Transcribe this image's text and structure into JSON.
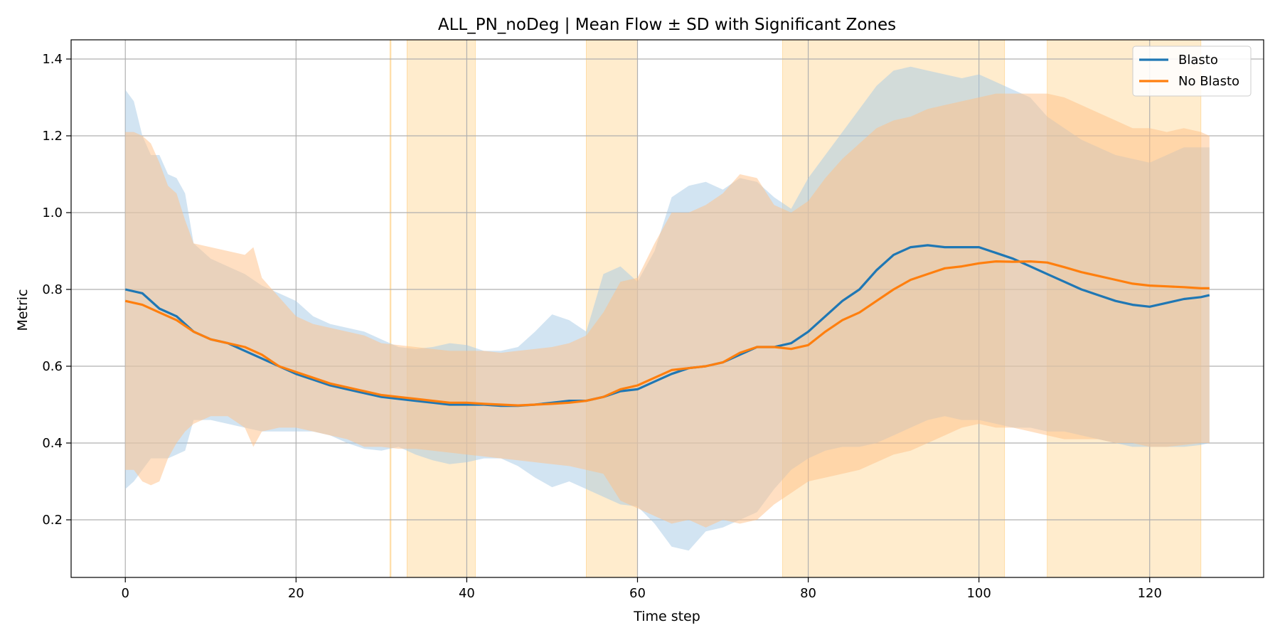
{
  "chart_data": {
    "type": "line",
    "title": "ALL_PN_noDeg | Mean Flow ± SD with Significant Zones",
    "xlabel": "Time step",
    "ylabel": "Metric",
    "xlim": [
      -6.35,
      133.35
    ],
    "ylim": [
      0.05,
      1.45
    ],
    "xticks": [
      0,
      20,
      40,
      60,
      80,
      100,
      120
    ],
    "yticks": [
      0.2,
      0.4,
      0.6,
      0.8,
      1.0,
      1.2,
      1.4
    ],
    "grid": true,
    "legend_position": "top-right",
    "significant_zones": [
      [
        31,
        31
      ],
      [
        33,
        41
      ],
      [
        54,
        60
      ],
      [
        77,
        103
      ],
      [
        108,
        126
      ]
    ],
    "series": [
      {
        "name": "Blasto",
        "color": "#1f77b4",
        "mean": {
          "x": [
            0,
            2,
            4,
            6,
            8,
            10,
            12,
            14,
            16,
            18,
            20,
            22,
            24,
            26,
            28,
            30,
            32,
            34,
            36,
            38,
            40,
            42,
            44,
            46,
            48,
            50,
            52,
            54,
            56,
            58,
            60,
            62,
            64,
            66,
            68,
            70,
            72,
            74,
            76,
            78,
            80,
            82,
            84,
            86,
            88,
            90,
            92,
            94,
            96,
            98,
            100,
            102,
            104,
            106,
            108,
            110,
            112,
            114,
            116,
            118,
            120,
            122,
            124,
            126,
            127
          ],
          "y": [
            0.8,
            0.79,
            0.75,
            0.73,
            0.69,
            0.67,
            0.66,
            0.64,
            0.62,
            0.6,
            0.58,
            0.565,
            0.55,
            0.54,
            0.53,
            0.52,
            0.515,
            0.51,
            0.505,
            0.5,
            0.5,
            0.5,
            0.497,
            0.497,
            0.5,
            0.505,
            0.51,
            0.51,
            0.52,
            0.535,
            0.54,
            0.56,
            0.58,
            0.595,
            0.6,
            0.61,
            0.63,
            0.65,
            0.65,
            0.66,
            0.69,
            0.73,
            0.77,
            0.8,
            0.85,
            0.89,
            0.91,
            0.915,
            0.91,
            0.91,
            0.91,
            0.895,
            0.88,
            0.86,
            0.84,
            0.82,
            0.8,
            0.785,
            0.77,
            0.76,
            0.755,
            0.765,
            0.775,
            0.78,
            0.785
          ]
        },
        "upper": {
          "x": [
            0,
            1,
            2,
            3,
            4,
            5,
            6,
            7,
            8,
            10,
            12,
            14,
            16,
            18,
            20,
            22,
            24,
            26,
            28,
            30,
            32,
            34,
            36,
            38,
            40,
            42,
            44,
            46,
            48,
            50,
            52,
            54,
            56,
            58,
            60,
            62,
            64,
            66,
            68,
            70,
            72,
            74,
            76,
            78,
            80,
            82,
            84,
            86,
            88,
            90,
            92,
            94,
            96,
            98,
            100,
            102,
            104,
            106,
            108,
            110,
            112,
            114,
            116,
            118,
            120,
            122,
            124,
            126,
            127
          ],
          "y": [
            1.32,
            1.29,
            1.2,
            1.15,
            1.15,
            1.1,
            1.09,
            1.05,
            0.92,
            0.88,
            0.86,
            0.84,
            0.81,
            0.79,
            0.77,
            0.73,
            0.71,
            0.7,
            0.69,
            0.67,
            0.65,
            0.645,
            0.65,
            0.66,
            0.655,
            0.64,
            0.64,
            0.65,
            0.69,
            0.735,
            0.72,
            0.69,
            0.84,
            0.86,
            0.82,
            0.9,
            1.04,
            1.07,
            1.08,
            1.06,
            1.09,
            1.08,
            1.04,
            1.01,
            1.09,
            1.15,
            1.21,
            1.27,
            1.33,
            1.37,
            1.38,
            1.37,
            1.36,
            1.35,
            1.36,
            1.34,
            1.32,
            1.3,
            1.25,
            1.22,
            1.19,
            1.17,
            1.15,
            1.14,
            1.13,
            1.15,
            1.17,
            1.17,
            1.17
          ]
        },
        "lower": {
          "x": [
            0,
            1,
            2,
            3,
            4,
            5,
            6,
            7,
            8,
            10,
            12,
            14,
            16,
            18,
            20,
            22,
            24,
            26,
            28,
            30,
            32,
            34,
            36,
            38,
            40,
            42,
            44,
            46,
            48,
            50,
            52,
            54,
            56,
            58,
            60,
            62,
            64,
            66,
            68,
            70,
            72,
            74,
            76,
            78,
            80,
            82,
            84,
            86,
            88,
            90,
            92,
            94,
            96,
            98,
            100,
            102,
            104,
            106,
            108,
            110,
            112,
            114,
            116,
            118,
            120,
            122,
            124,
            126,
            127
          ],
          "y": [
            0.28,
            0.3,
            0.33,
            0.36,
            0.36,
            0.36,
            0.37,
            0.38,
            0.46,
            0.46,
            0.45,
            0.44,
            0.43,
            0.43,
            0.43,
            0.43,
            0.42,
            0.4,
            0.385,
            0.38,
            0.39,
            0.37,
            0.355,
            0.345,
            0.35,
            0.36,
            0.36,
            0.34,
            0.31,
            0.285,
            0.3,
            0.28,
            0.26,
            0.24,
            0.235,
            0.19,
            0.13,
            0.12,
            0.17,
            0.18,
            0.2,
            0.22,
            0.28,
            0.33,
            0.36,
            0.38,
            0.39,
            0.39,
            0.4,
            0.42,
            0.44,
            0.46,
            0.47,
            0.46,
            0.46,
            0.45,
            0.44,
            0.44,
            0.43,
            0.43,
            0.42,
            0.41,
            0.4,
            0.39,
            0.39,
            0.39,
            0.39,
            0.395,
            0.4
          ]
        }
      },
      {
        "name": "No Blasto",
        "color": "#ff7f0e",
        "mean": {
          "x": [
            0,
            2,
            4,
            6,
            8,
            10,
            12,
            14,
            16,
            18,
            20,
            22,
            24,
            26,
            28,
            30,
            32,
            34,
            36,
            38,
            40,
            42,
            44,
            46,
            48,
            50,
            52,
            54,
            56,
            58,
            60,
            62,
            64,
            66,
            68,
            70,
            72,
            74,
            76,
            78,
            80,
            82,
            84,
            86,
            88,
            90,
            92,
            94,
            96,
            98,
            100,
            102,
            104,
            106,
            108,
            110,
            112,
            114,
            116,
            118,
            120,
            122,
            124,
            126,
            127
          ],
          "y": [
            0.77,
            0.76,
            0.74,
            0.72,
            0.69,
            0.67,
            0.66,
            0.65,
            0.63,
            0.6,
            0.585,
            0.57,
            0.555,
            0.545,
            0.535,
            0.525,
            0.52,
            0.515,
            0.51,
            0.505,
            0.505,
            0.502,
            0.5,
            0.498,
            0.5,
            0.502,
            0.505,
            0.51,
            0.52,
            0.54,
            0.55,
            0.57,
            0.59,
            0.595,
            0.6,
            0.61,
            0.635,
            0.65,
            0.65,
            0.645,
            0.655,
            0.69,
            0.72,
            0.74,
            0.77,
            0.8,
            0.825,
            0.84,
            0.855,
            0.86,
            0.868,
            0.873,
            0.872,
            0.873,
            0.87,
            0.858,
            0.845,
            0.835,
            0.825,
            0.815,
            0.81,
            0.808,
            0.806,
            0.803,
            0.803
          ]
        },
        "upper": {
          "x": [
            0,
            1,
            2,
            3,
            4,
            5,
            6,
            7,
            8,
            10,
            12,
            14,
            15,
            16,
            18,
            20,
            22,
            24,
            26,
            28,
            30,
            32,
            34,
            36,
            38,
            40,
            42,
            44,
            46,
            48,
            50,
            52,
            54,
            56,
            58,
            60,
            62,
            64,
            66,
            68,
            70,
            72,
            74,
            76,
            78,
            80,
            82,
            84,
            86,
            88,
            90,
            92,
            94,
            96,
            98,
            100,
            102,
            104,
            106,
            108,
            110,
            112,
            114,
            116,
            118,
            120,
            122,
            124,
            126,
            127
          ],
          "y": [
            1.21,
            1.21,
            1.2,
            1.18,
            1.13,
            1.07,
            1.05,
            0.98,
            0.92,
            0.91,
            0.9,
            0.89,
            0.91,
            0.83,
            0.78,
            0.73,
            0.71,
            0.7,
            0.69,
            0.68,
            0.66,
            0.655,
            0.65,
            0.645,
            0.64,
            0.64,
            0.64,
            0.635,
            0.64,
            0.645,
            0.65,
            0.66,
            0.68,
            0.74,
            0.82,
            0.83,
            0.92,
            1.0,
            1.0,
            1.02,
            1.05,
            1.1,
            1.09,
            1.02,
            1.0,
            1.03,
            1.09,
            1.14,
            1.18,
            1.22,
            1.24,
            1.25,
            1.27,
            1.28,
            1.29,
            1.3,
            1.31,
            1.31,
            1.31,
            1.31,
            1.3,
            1.28,
            1.26,
            1.24,
            1.22,
            1.22,
            1.21,
            1.22,
            1.21,
            1.2
          ]
        },
        "lower": {
          "x": [
            0,
            1,
            2,
            3,
            4,
            5,
            6,
            7,
            8,
            10,
            12,
            14,
            15,
            16,
            18,
            20,
            22,
            24,
            26,
            28,
            30,
            32,
            34,
            36,
            38,
            40,
            42,
            44,
            46,
            48,
            50,
            52,
            54,
            56,
            58,
            60,
            62,
            64,
            66,
            68,
            70,
            72,
            74,
            76,
            78,
            80,
            82,
            84,
            86,
            88,
            90,
            92,
            94,
            96,
            98,
            100,
            102,
            104,
            106,
            108,
            110,
            112,
            114,
            116,
            118,
            120,
            122,
            124,
            126,
            127
          ],
          "y": [
            0.33,
            0.33,
            0.3,
            0.29,
            0.3,
            0.36,
            0.4,
            0.43,
            0.45,
            0.47,
            0.47,
            0.44,
            0.39,
            0.43,
            0.44,
            0.44,
            0.43,
            0.42,
            0.41,
            0.39,
            0.39,
            0.385,
            0.385,
            0.38,
            0.375,
            0.37,
            0.365,
            0.36,
            0.355,
            0.35,
            0.345,
            0.34,
            0.33,
            0.32,
            0.25,
            0.23,
            0.21,
            0.19,
            0.2,
            0.18,
            0.2,
            0.19,
            0.2,
            0.24,
            0.27,
            0.3,
            0.31,
            0.32,
            0.33,
            0.35,
            0.37,
            0.38,
            0.4,
            0.42,
            0.44,
            0.45,
            0.44,
            0.44,
            0.43,
            0.42,
            0.41,
            0.41,
            0.41,
            0.4,
            0.4,
            0.39,
            0.39,
            0.395,
            0.4,
            0.4
          ]
        }
      }
    ]
  }
}
